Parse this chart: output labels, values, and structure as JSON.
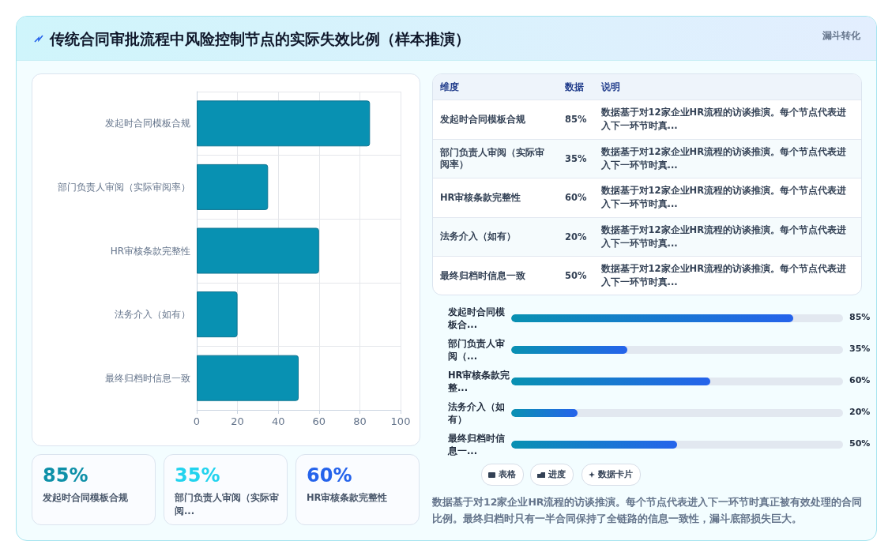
{
  "chart_data": [
    {
      "type": "other",
      "title": "传统合同审批流程中风险控制节点的实际失效比例（样本推演）",
      "subtitle": "漏斗转化"
    },
    {
      "type": "bar",
      "orientation": "horizontal",
      "categories": [
        "发起时合同模板合规",
        "部门负责人审阅（实际审阅率）",
        "HR审核条款完整性",
        "法务介入（如有）",
        "最终归档时信息一致"
      ],
      "values": [
        85,
        35,
        60,
        20,
        50
      ],
      "color": "#0891b2",
      "xlim": [
        0,
        100
      ],
      "xticks": [
        0,
        20,
        40,
        60,
        80,
        100
      ],
      "grid": true
    },
    {
      "type": "other",
      "categories": [
        "发起时合同模板合规",
        "部门负责人审阅（实际审阅率）",
        "HR审核条款完整性",
        "法务介入（如有）",
        "最终归档时信息一致"
      ],
      "value_labels": [
        "85%",
        "35%",
        "60%",
        "20%",
        "50%"
      ],
      "annotations": [
        "维度",
        "数据",
        "说明",
        "数据基于对12家企业HR流程的访谈推演。每个节点代表进入下一环节时真..."
      ]
    },
    {
      "type": "other",
      "categories": [
        "发起时合同模板合...",
        "部门负责人审阅（...",
        "HR审核条款完整...",
        "法务介入（如有）",
        "最终归档时信息一..."
      ],
      "values": [
        85,
        35,
        60,
        20,
        50
      ],
      "value_labels": [
        "85%",
        "35%",
        "60%",
        "20%",
        "50%"
      ],
      "color": "#0891b2"
    },
    {
      "type": "other",
      "categories": [
        "发起时合同模板合规",
        "部门负责人审阅（实际审阅...",
        "HR审核条款完整性"
      ],
      "value_labels": [
        "85%",
        "35%",
        "60%"
      ]
    },
    {
      "type": "other",
      "annotations": [
        "表格",
        "进度",
        "数据卡片",
        "数据基于对12家企业HR流程的访谈推演。每个节点代表进入下一环节时真正被有效处理的合同比例。最终归档时只有一半合同保持了全链路的信息一致性，漏斗底部损失巨大。"
      ]
    }
  ]
}
